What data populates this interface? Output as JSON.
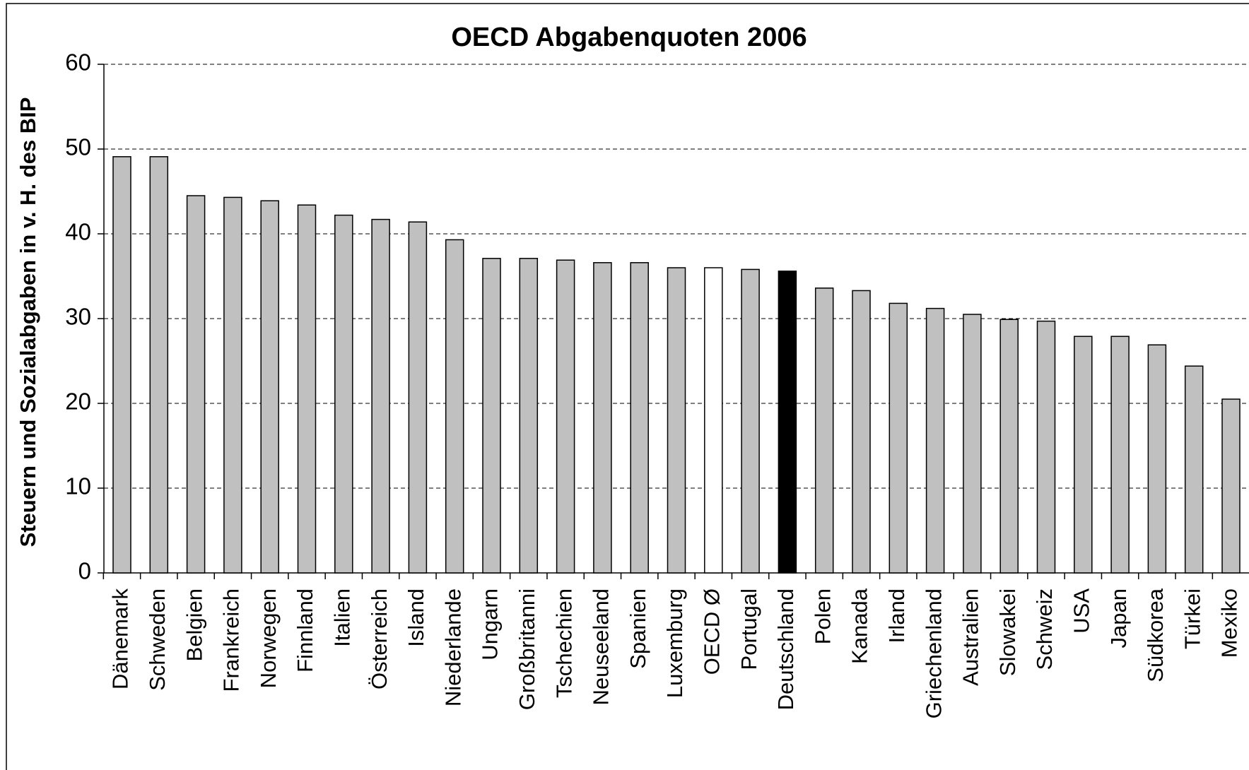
{
  "chart_data": {
    "type": "bar",
    "title": "OECD Abgabenquoten 2006",
    "ylabel": "Steuern und Sozialabgaben in v. H. des BIP",
    "categories": [
      "Dänemark",
      "Schweden",
      "Belgien",
      "Frankreich",
      "Norwegen",
      "Finnland",
      "Italien",
      "Österreich",
      "Island",
      "Niederlande",
      "Ungarn",
      "Großbritanni",
      "Tschechien",
      "Neuseeland",
      "Spanien",
      "Luxemburg",
      "OECD Ø",
      "Portugal",
      "Deutschland",
      "Polen",
      "Kanada",
      "Irland",
      "Griechenland",
      "Australien",
      "Slowakei",
      "Schweiz",
      "USA",
      "Japan",
      "Südkorea",
      "Türkei",
      "Mexiko"
    ],
    "values": [
      49.1,
      49.1,
      44.5,
      44.3,
      43.9,
      43.4,
      42.2,
      41.7,
      41.4,
      39.3,
      37.1,
      37.1,
      36.9,
      36.6,
      36.6,
      36.0,
      36.0,
      35.8,
      35.6,
      33.6,
      33.3,
      31.8,
      31.2,
      30.5,
      29.9,
      29.7,
      27.9,
      27.9,
      26.9,
      24.4,
      20.5
    ],
    "colors": [
      "#c0c0c0",
      "#c0c0c0",
      "#c0c0c0",
      "#c0c0c0",
      "#c0c0c0",
      "#c0c0c0",
      "#c0c0c0",
      "#c0c0c0",
      "#c0c0c0",
      "#c0c0c0",
      "#c0c0c0",
      "#c0c0c0",
      "#c0c0c0",
      "#c0c0c0",
      "#c0c0c0",
      "#c0c0c0",
      "#ffffff",
      "#c0c0c0",
      "#000000",
      "#c0c0c0",
      "#c0c0c0",
      "#c0c0c0",
      "#c0c0c0",
      "#c0c0c0",
      "#c0c0c0",
      "#c0c0c0",
      "#c0c0c0",
      "#c0c0c0",
      "#c0c0c0",
      "#c0c0c0",
      "#c0c0c0"
    ],
    "ylim": [
      0,
      60
    ],
    "yticks": [
      0,
      10,
      20,
      30,
      40,
      50,
      60
    ],
    "grid": true
  }
}
